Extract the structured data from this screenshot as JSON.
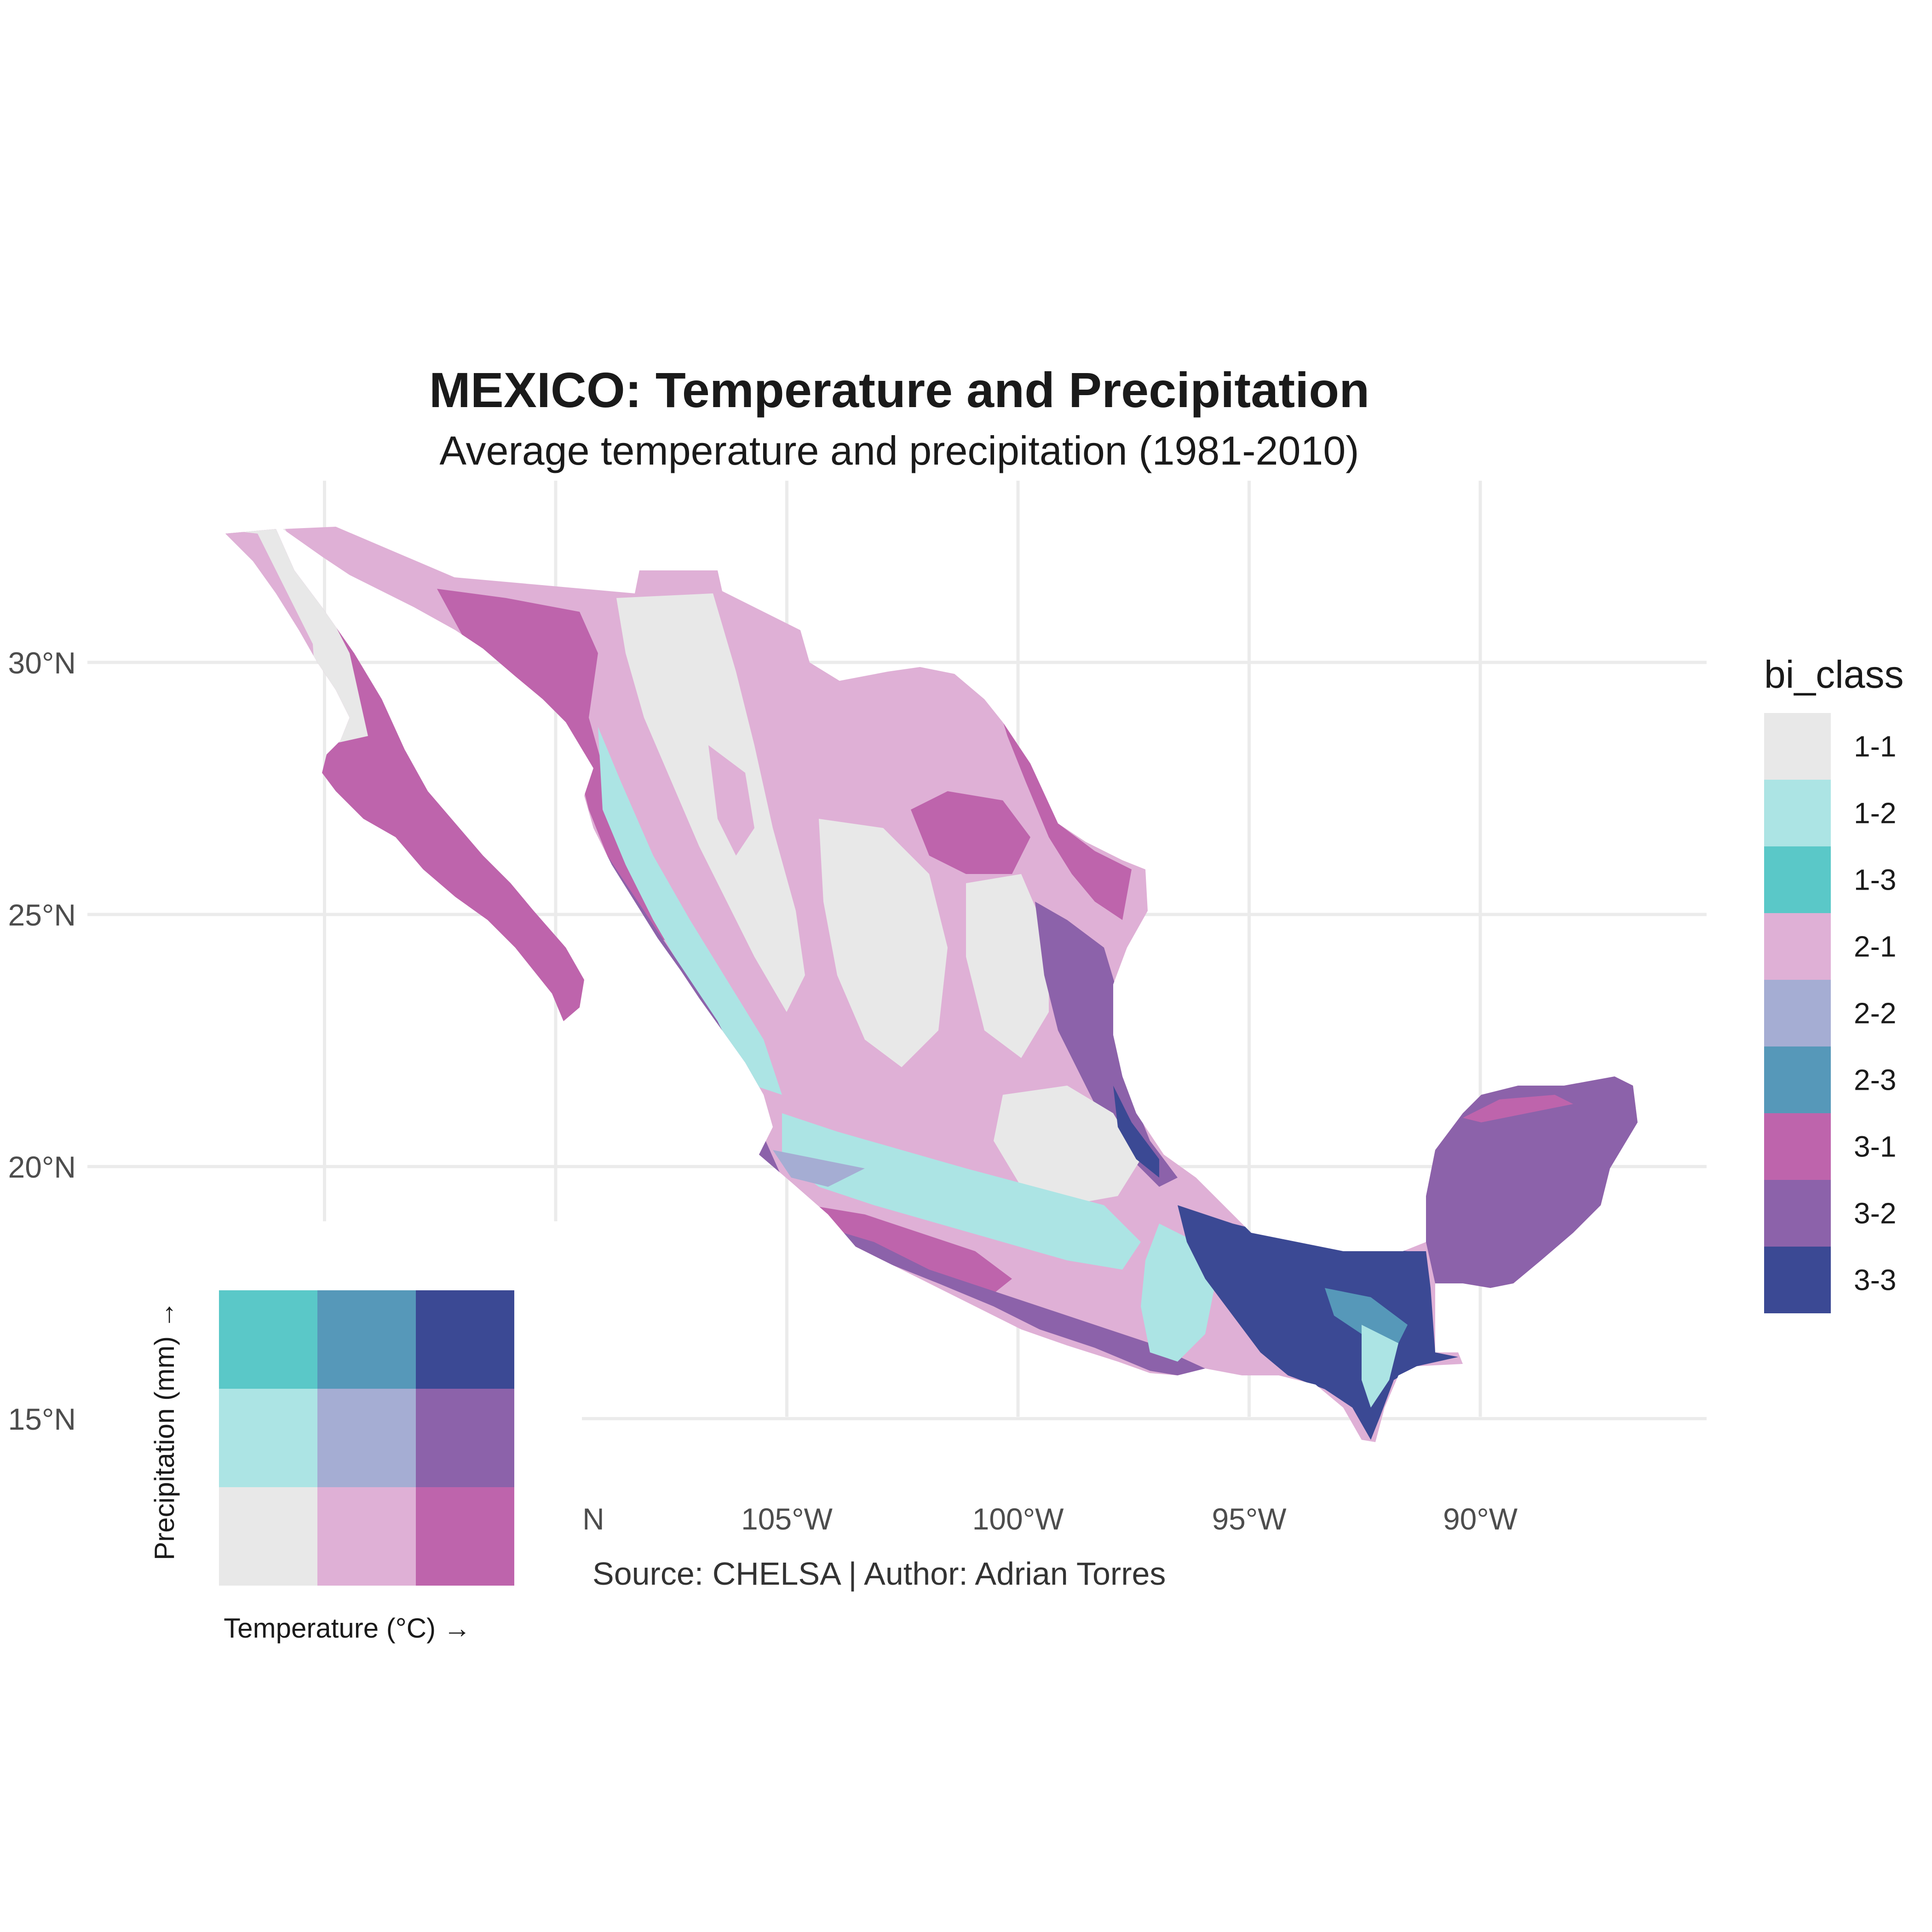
{
  "map": {
    "title": "MEXICO: Temperature and Precipitation",
    "subtitle": "Average temperature and precipitation (1981-2010)",
    "caption": "Source: CHELSA | Author: Adrian Torres",
    "lat_ticks": [
      {
        "value": 30,
        "label": "30°N"
      },
      {
        "value": 25,
        "label": "25°N"
      },
      {
        "value": 20,
        "label": "20°N"
      },
      {
        "value": 15,
        "label": "15°N"
      }
    ],
    "lon_ticks": [
      {
        "value": -110,
        "label": "N"
      },
      {
        "value": -105,
        "label": "105°W"
      },
      {
        "value": -100,
        "label": "100°W"
      },
      {
        "value": -95,
        "label": "95°W"
      },
      {
        "value": -90,
        "label": "90°W"
      }
    ],
    "colors": {
      "1-1": "#e8e8e8",
      "1-2": "#ace4e4",
      "1-3": "#5ac8c8",
      "2-1": "#dfb0d6",
      "2-2": "#a5add3",
      "2-3": "#5698b9",
      "3-1": "#be64ac",
      "3-2": "#8c62aa",
      "3-3": "#3b4994"
    }
  },
  "legend": {
    "title": "bi_class",
    "items": [
      "1-1",
      "1-2",
      "1-3",
      "2-1",
      "2-2",
      "2-3",
      "3-1",
      "3-2",
      "3-3"
    ]
  },
  "bivariate_key": {
    "x_label": "Temperature (°C) →",
    "y_label": "Precipitation (mm) →"
  }
}
